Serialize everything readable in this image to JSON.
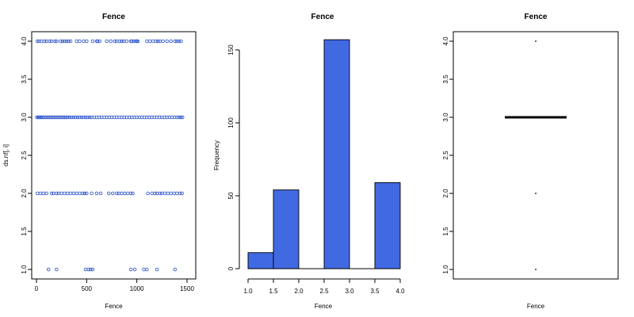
{
  "chart_data": [
    {
      "type": "scatter",
      "title": "Fence",
      "xlabel": "Fence",
      "ylabel": "ds.nf[, i]",
      "xlim": [
        0,
        1500
      ],
      "ylim": [
        1.0,
        4.0
      ],
      "xticks": [
        "0",
        "500",
        "1000",
        "1500"
      ],
      "yticks": [
        "1.0",
        "1.5",
        "2.0",
        "2.5",
        "3.0",
        "3.5",
        "4.0"
      ],
      "point_color": "#3a5fcd",
      "series": [
        {
          "y": 4,
          "x": [
            10,
            25,
            50,
            80,
            100,
            130,
            150,
            185,
            200,
            240,
            260,
            280,
            300,
            320,
            340,
            400,
            430,
            470,
            500,
            560,
            600,
            610,
            630,
            700,
            740,
            780,
            800,
            830,
            850,
            870,
            900,
            940,
            950,
            970,
            990,
            1000,
            1010,
            1100,
            1130,
            1160,
            1190,
            1210,
            1230,
            1260,
            1300,
            1340,
            1380,
            1400,
            1420,
            1440
          ]
        },
        {
          "y": 3,
          "x": [
            5,
            15,
            25,
            35,
            45,
            55,
            70,
            85,
            100,
            115,
            130,
            145,
            160,
            175,
            190,
            205,
            220,
            235,
            250,
            265,
            280,
            295,
            310,
            330,
            350,
            370,
            390,
            410,
            430,
            450,
            470,
            490,
            510,
            530,
            550,
            575,
            600,
            625,
            650,
            675,
            700,
            725,
            750,
            775,
            800,
            825,
            850,
            875,
            900,
            925,
            950,
            975,
            1000,
            1025,
            1050,
            1075,
            1100,
            1125,
            1150,
            1175,
            1200,
            1225,
            1250,
            1275,
            1300,
            1325,
            1350,
            1375,
            1400,
            1420,
            1440,
            1455
          ]
        },
        {
          "y": 2,
          "x": [
            10,
            40,
            70,
            100,
            150,
            170,
            200,
            220,
            250,
            280,
            310,
            340,
            370,
            400,
            430,
            460,
            480,
            500,
            550,
            600,
            640,
            720,
            760,
            800,
            820,
            850,
            880,
            910,
            940,
            960,
            1110,
            1150,
            1180,
            1200,
            1230,
            1250,
            1280,
            1310,
            1340,
            1370,
            1400,
            1430,
            1450
          ]
        },
        {
          "y": 1,
          "x": [
            120,
            200,
            490,
            520,
            540,
            560,
            940,
            980,
            1070,
            1100,
            1200,
            1380
          ]
        }
      ]
    },
    {
      "type": "bar",
      "title": "Fence",
      "xlabel": "Fence",
      "ylabel": "Frequency",
      "xlim": [
        1.0,
        4.0
      ],
      "ylim": [
        0,
        160
      ],
      "xticks": [
        "1.0",
        "1.5",
        "2.0",
        "2.5",
        "3.0",
        "3.5",
        "4.0"
      ],
      "yticks": [
        "0",
        "50",
        "100",
        "150"
      ],
      "bar_color": "#4169e1",
      "bins": [
        {
          "from": 1.0,
          "to": 1.5,
          "value": 11
        },
        {
          "from": 1.5,
          "to": 2.0,
          "value": 54
        },
        {
          "from": 2.0,
          "to": 2.5,
          "value": 0
        },
        {
          "from": 2.5,
          "to": 3.0,
          "value": 157
        },
        {
          "from": 3.0,
          "to": 3.5,
          "value": 0
        },
        {
          "from": 3.5,
          "to": 4.0,
          "value": 59
        }
      ]
    },
    {
      "type": "box",
      "title": "Fence",
      "xlabel": "Fence",
      "ylim": [
        1.0,
        4.0
      ],
      "yticks": [
        "1.0",
        "1.5",
        "2.0",
        "2.5",
        "3.0",
        "3.5",
        "4.0"
      ],
      "median": 3.0,
      "q1": 3.0,
      "q3": 3.0,
      "outliers": [
        1.0,
        2.0,
        4.0
      ]
    }
  ]
}
